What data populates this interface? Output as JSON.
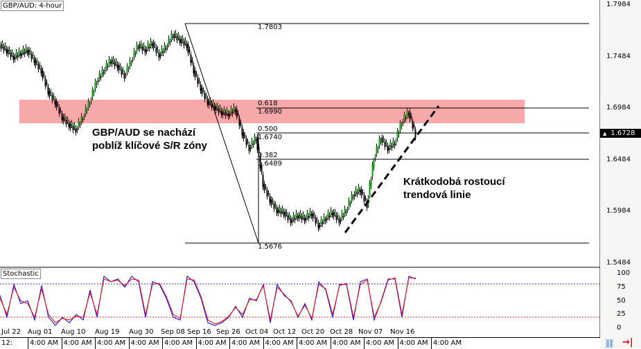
{
  "window": {
    "title": "GBP/AUD: 4-hour"
  },
  "indicator": {
    "title": "Stochastic"
  },
  "price_axis": {
    "ticks": [
      "1.7984",
      "1.7484",
      "1.6984",
      "1.6484",
      "1.5984",
      "1.5484"
    ],
    "tick_values": [
      1.7984,
      1.7484,
      1.6984,
      1.6484,
      1.5984,
      1.5484
    ],
    "current": "1.6728",
    "current_icon": "triangle-up-icon"
  },
  "stoch_axis": {
    "ticks": [
      "100",
      "75",
      "50",
      "25",
      "0"
    ],
    "tick_values": [
      100,
      75,
      50,
      25,
      0
    ],
    "levels": [
      80,
      20
    ]
  },
  "fib": {
    "high": "1.7803",
    "low": "1.5676",
    "levels": [
      {
        "ratio": "0.618",
        "price": "1.6990"
      },
      {
        "ratio": "0.500",
        "price": "1.6740"
      },
      {
        "ratio": "0.382",
        "price": "1.6489"
      }
    ]
  },
  "annotations": {
    "zone": "GBP/AUD se nachází\npoblíž klíčové S/R zóny",
    "trend": "Krátkodobá rostoucí\ntrendová linie"
  },
  "time_axis": [
    "Jul 22",
    "Aug 01",
    "Aug 10",
    "Aug 19",
    "Aug 30",
    "Sep 08",
    "Sep 16",
    "Sep 26",
    "Oct 04",
    "Oct 12",
    "Oct 20",
    "Oct 28",
    "Nov 07",
    "Nov 16"
  ],
  "scroll_bar": {
    "first": "12:",
    "items": [
      "4:00 AM",
      "4:00 AM",
      "4:00 AM",
      "4:00 AM",
      "4:00 AM",
      "4:00 AM",
      "4:00 AM",
      "4:00 AM",
      "4:00 AM",
      "4:00 AM",
      "4:00 AM",
      "4:00 AM",
      "4:00 AM"
    ],
    "icons": [
      "sync-link-icon",
      "shift-end-icon"
    ]
  },
  "colors": {
    "zone": "#f7a8a8",
    "bull": "#00a000",
    "bear": "#000000",
    "stoch_main": "#0000ff",
    "stoch_signal": "#ff0000"
  },
  "chart_data": [
    {
      "type": "line",
      "title": "GBP/AUD: 4-hour",
      "ylim": [
        1.5484,
        1.7984
      ],
      "values": [
        1.76,
        1.755,
        1.748,
        1.752,
        1.755,
        1.745,
        1.735,
        1.715,
        1.705,
        1.69,
        1.683,
        1.678,
        1.69,
        1.705,
        1.725,
        1.735,
        1.745,
        1.74,
        1.73,
        1.745,
        1.76,
        1.755,
        1.762,
        1.75,
        1.758,
        1.77,
        1.765,
        1.76,
        1.735,
        1.718,
        1.705,
        1.7,
        1.695,
        1.693,
        1.698,
        1.675,
        1.66,
        1.67,
        1.625,
        1.61,
        1.6,
        1.598,
        1.59,
        1.595,
        1.592,
        1.597,
        1.585,
        1.592,
        1.598,
        1.59,
        1.6,
        1.615,
        1.62,
        1.605,
        1.65,
        1.67,
        1.66,
        1.665,
        1.685,
        1.695,
        1.673
      ]
    },
    {
      "type": "line",
      "title": "Stochastic",
      "ylim": [
        0,
        100
      ],
      "series": [
        {
          "values": [
            60,
            20,
            80,
            45,
            50,
            15,
            78,
            20,
            5,
            20,
            10,
            25,
            15,
            70,
            20,
            95,
            85,
            90,
            75,
            95,
            85,
            20,
            85,
            80,
            55,
            20,
            15,
            95,
            85,
            55,
            10,
            5,
            10,
            20,
            40,
            20,
            55,
            50,
            80,
            10,
            80,
            60,
            50,
            20,
            45,
            15,
            85,
            70,
            20,
            80,
            80,
            15,
            85,
            90,
            15,
            50,
            90,
            90,
            20,
            95,
            90
          ]
        },
        {
          "values": [
            55,
            25,
            75,
            50,
            45,
            20,
            72,
            25,
            10,
            18,
            15,
            22,
            20,
            65,
            25,
            90,
            85,
            88,
            78,
            90,
            88,
            25,
            80,
            82,
            58,
            25,
            18,
            90,
            88,
            58,
            15,
            8,
            12,
            22,
            38,
            25,
            52,
            52,
            78,
            15,
            75,
            62,
            48,
            22,
            42,
            18,
            80,
            72,
            25,
            78,
            82,
            20,
            80,
            88,
            20,
            48,
            88,
            92,
            25,
            92,
            92
          ]
        }
      ]
    }
  ]
}
